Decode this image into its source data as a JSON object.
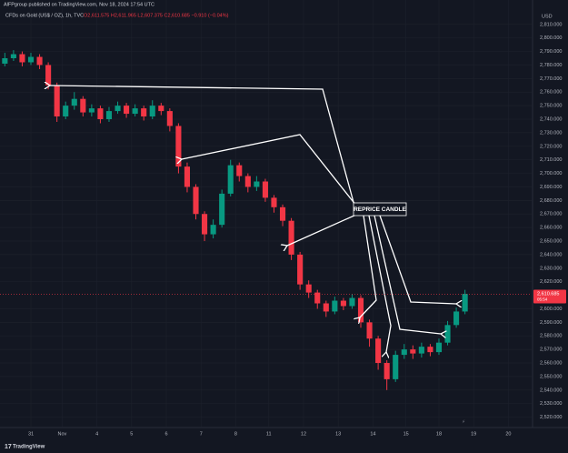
{
  "header": {
    "publisher": "AlFPgroup published on TradingView.com, Nov 18, 2024 17:54 UTC",
    "logo": "TradingView"
  },
  "chart_data": {
    "type": "candlestick",
    "title": "CFDs on Gold (US$ / OZ), 1h, TVC",
    "ohlc_text": "O2,611.575  H2,611.965  L2,607.375  C2,610.685  −0.910 (−0.04%)",
    "currency": "USD",
    "annotation": "REPRICE CANDLE",
    "last_price_label": "2,610.685",
    "last_price_time": "05:54",
    "last_price": 2610.685,
    "up_color": "#089981",
    "down_color": "#f23645",
    "grid": true,
    "x": [
      -0.75,
      -0.5,
      -0.25,
      0,
      0.25,
      0.5,
      0.75,
      1,
      1.25,
      1.5,
      1.75,
      2,
      2.25,
      2.5,
      2.75,
      3,
      3.25,
      3.5,
      3.75,
      4,
      4.25,
      4.5,
      4.75,
      5,
      5.25,
      5.5,
      5.75,
      6,
      6.25,
      6.5,
      6.75,
      7,
      7.25,
      7.5,
      7.75,
      8,
      8.25,
      8.5,
      8.75,
      9,
      9.25,
      9.5,
      9.75,
      10,
      10.25,
      10.5,
      10.75,
      11,
      11.25,
      11.5,
      11.75,
      12,
      12.25,
      12.5
    ],
    "open": [
      2781,
      2785,
      2788,
      2782,
      2786,
      2780,
      2765,
      2742,
      2750,
      2755,
      2745,
      2748,
      2740,
      2746,
      2750,
      2744,
      2748,
      2742,
      2750,
      2746,
      2735,
      2705,
      2690,
      2670,
      2655,
      2662,
      2685,
      2706,
      2698,
      2690,
      2694,
      2682,
      2675,
      2665,
      2640,
      2618,
      2612,
      2604,
      2598,
      2606,
      2602,
      2608,
      2590,
      2578,
      2560,
      2548,
      2566,
      2570,
      2567,
      2572,
      2568,
      2575,
      2588,
      2598
    ],
    "high": [
      2789,
      2791,
      2790,
      2789,
      2788,
      2782,
      2767,
      2753,
      2760,
      2757,
      2751,
      2750,
      2749,
      2753,
      2752,
      2751,
      2750,
      2754,
      2752,
      2748,
      2737,
      2708,
      2692,
      2672,
      2666,
      2688,
      2710,
      2708,
      2700,
      2698,
      2696,
      2684,
      2677,
      2667,
      2642,
      2621,
      2614,
      2606,
      2609,
      2608,
      2611,
      2610,
      2592,
      2580,
      2562,
      2569,
      2574,
      2573,
      2575,
      2574,
      2578,
      2591,
      2601,
      2614
    ],
    "low": [
      2779,
      2783,
      2779,
      2780,
      2777,
      2762,
      2738,
      2740,
      2747,
      2742,
      2742,
      2737,
      2738,
      2744,
      2741,
      2742,
      2739,
      2740,
      2743,
      2731,
      2700,
      2686,
      2666,
      2650,
      2652,
      2660,
      2683,
      2694,
      2686,
      2687,
      2679,
      2671,
      2661,
      2636,
      2614,
      2608,
      2600,
      2594,
      2596,
      2599,
      2600,
      2586,
      2572,
      2555,
      2540,
      2546,
      2563,
      2563,
      2564,
      2565,
      2566,
      2573,
      2586,
      2596
    ],
    "close": [
      2785,
      2788,
      2782,
      2786,
      2780,
      2765,
      2742,
      2750,
      2755,
      2745,
      2748,
      2740,
      2746,
      2750,
      2744,
      2748,
      2742,
      2750,
      2746,
      2735,
      2705,
      2690,
      2670,
      2655,
      2662,
      2685,
      2706,
      2698,
      2690,
      2694,
      2682,
      2675,
      2665,
      2640,
      2618,
      2612,
      2604,
      2598,
      2606,
      2602,
      2608,
      2590,
      2578,
      2560,
      2548,
      2566,
      2570,
      2567,
      2572,
      2568,
      2575,
      2588,
      2598,
      2611
    ],
    "xlim": [
      -0.89,
      14.42
    ],
    "xticks": [
      {
        "value": 0,
        "label": "31"
      },
      {
        "value": 0.9,
        "label": "Nov"
      },
      {
        "value": 1.9,
        "label": "4"
      },
      {
        "value": 2.9,
        "label": "5"
      },
      {
        "value": 3.9,
        "label": "6"
      },
      {
        "value": 4.9,
        "label": "7"
      },
      {
        "value": 5.9,
        "label": "8"
      },
      {
        "value": 6.85,
        "label": "11"
      },
      {
        "value": 7.85,
        "label": "12"
      },
      {
        "value": 8.85,
        "label": "13"
      },
      {
        "value": 9.85,
        "label": "14"
      },
      {
        "value": 10.8,
        "label": "15"
      },
      {
        "value": 11.75,
        "label": "18"
      },
      {
        "value": 12.75,
        "label": "19"
      },
      {
        "value": 13.75,
        "label": "20"
      }
    ],
    "ylim": [
      2513,
      2828
    ],
    "yticks": [
      {
        "value": 2520,
        "label": "2,520.000"
      },
      {
        "value": 2530,
        "label": "2,530.000"
      },
      {
        "value": 2540,
        "label": "2,540.000"
      },
      {
        "value": 2550,
        "label": "2,550.000"
      },
      {
        "value": 2560,
        "label": "2,560.000"
      },
      {
        "value": 2570,
        "label": "2,570.000"
      },
      {
        "value": 2580,
        "label": "2,580.000"
      },
      {
        "value": 2590,
        "label": "2,590.000"
      },
      {
        "value": 2600,
        "label": "2,600.000"
      },
      {
        "value": 2620,
        "label": "2,620.000"
      },
      {
        "value": 2630,
        "label": "2,630.000"
      },
      {
        "value": 2640,
        "label": "2,640.000"
      },
      {
        "value": 2650,
        "label": "2,650.000"
      },
      {
        "value": 2660,
        "label": "2,660.000"
      },
      {
        "value": 2670,
        "label": "2,670.000"
      },
      {
        "value": 2680,
        "label": "2,680.000"
      },
      {
        "value": 2690,
        "label": "2,690.000"
      },
      {
        "value": 2700,
        "label": "2,700.000"
      },
      {
        "value": 2710,
        "label": "2,710.000"
      },
      {
        "value": 2720,
        "label": "2,720.000"
      },
      {
        "value": 2730,
        "label": "2,730.000"
      },
      {
        "value": 2740,
        "label": "2,740.000"
      },
      {
        "value": 2750,
        "label": "2,750.000"
      },
      {
        "value": 2760,
        "label": "2,760.000"
      },
      {
        "value": 2770,
        "label": "2,770.000"
      },
      {
        "value": 2780,
        "label": "2,780.000"
      },
      {
        "value": 2790,
        "label": "2,790.000"
      },
      {
        "value": 2800,
        "label": "2,800.000"
      },
      {
        "value": 2810,
        "label": "2,810.000"
      }
    ]
  }
}
